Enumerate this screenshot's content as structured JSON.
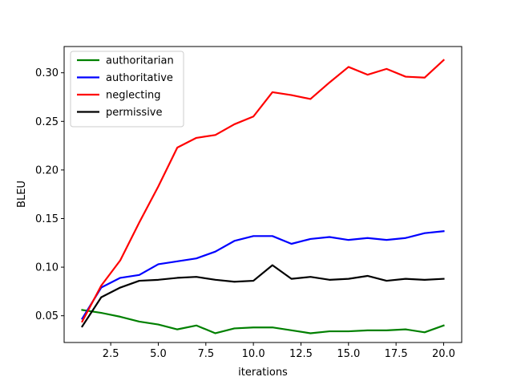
{
  "chart_data": {
    "type": "line",
    "xlabel": "iterations",
    "ylabel": "BLEU",
    "xlim": [
      0.05,
      20.95
    ],
    "ylim": [
      0.0225,
      0.327
    ],
    "xticks": [
      2.5,
      5.0,
      7.5,
      10.0,
      12.5,
      15.0,
      17.5,
      20.0
    ],
    "xtick_labels": [
      "2.5",
      "5.0",
      "7.5",
      "10.0",
      "12.5",
      "15.0",
      "17.5",
      "20.0"
    ],
    "yticks": [
      0.05,
      0.1,
      0.15,
      0.2,
      0.25,
      0.3
    ],
    "ytick_labels": [
      "0.05",
      "0.10",
      "0.15",
      "0.20",
      "0.25",
      "0.30"
    ],
    "grid": false,
    "legend": "top-left",
    "x": [
      1,
      2,
      3,
      4,
      5,
      6,
      7,
      8,
      9,
      10,
      11,
      12,
      13,
      14,
      15,
      16,
      17,
      18,
      19,
      20
    ],
    "series": [
      {
        "name": "authoritarian",
        "color": "#008000",
        "values": [
          0.056,
          0.053,
          0.049,
          0.044,
          0.041,
          0.036,
          0.04,
          0.032,
          0.037,
          0.038,
          0.038,
          0.035,
          0.032,
          0.034,
          0.034,
          0.035,
          0.035,
          0.036,
          0.033,
          0.04
        ]
      },
      {
        "name": "authoritative",
        "color": "#0000ff",
        "values": [
          0.047,
          0.079,
          0.089,
          0.092,
          0.103,
          0.106,
          0.109,
          0.116,
          0.127,
          0.132,
          0.132,
          0.124,
          0.129,
          0.131,
          0.128,
          0.13,
          0.128,
          0.13,
          0.135,
          0.137
        ]
      },
      {
        "name": "neglecting",
        "color": "#ff0000",
        "values": [
          0.044,
          0.081,
          0.107,
          0.146,
          0.183,
          0.223,
          0.233,
          0.236,
          0.247,
          0.255,
          0.28,
          0.277,
          0.273,
          0.29,
          0.306,
          0.298,
          0.304,
          0.296,
          0.295,
          0.313
        ]
      },
      {
        "name": "permissive",
        "color": "#000000",
        "values": [
          0.039,
          0.069,
          0.079,
          0.086,
          0.087,
          0.089,
          0.09,
          0.087,
          0.085,
          0.086,
          0.102,
          0.088,
          0.09,
          0.087,
          0.088,
          0.091,
          0.086,
          0.088,
          0.087,
          0.088
        ]
      }
    ]
  }
}
